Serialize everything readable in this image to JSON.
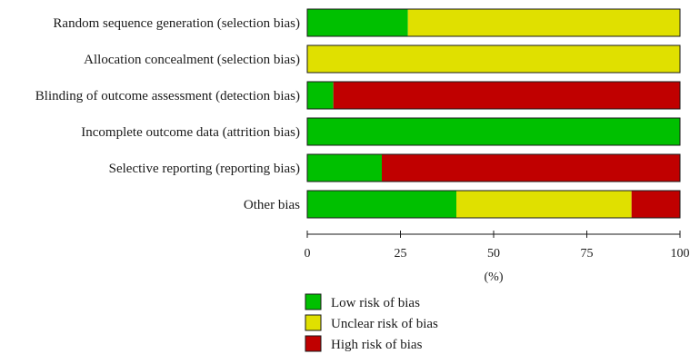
{
  "chart_data": {
    "type": "bar",
    "orientation": "horizontal",
    "stacked": true,
    "categories": [
      "Random sequence generation (selection bias)",
      "Allocation concealment (selection bias)",
      "Blinding of outcome assessment (detection bias)",
      "Incomplete outcome data (attrition bias)",
      "Selective reporting (reporting bias)",
      "Other bias"
    ],
    "series": [
      {
        "name": "Low risk of bias",
        "color": "#00c000",
        "values": [
          27,
          0,
          7,
          100,
          20,
          40
        ]
      },
      {
        "name": "Unclear risk of bias",
        "color": "#e0e000",
        "values": [
          73,
          100,
          0,
          0,
          0,
          47
        ]
      },
      {
        "name": "High risk of bias",
        "color": "#c00000",
        "values": [
          0,
          0,
          93,
          0,
          80,
          13
        ]
      }
    ],
    "xlim": [
      0,
      100
    ],
    "xticks": [
      "0",
      "25",
      "50",
      "75",
      "100"
    ],
    "xlabel": "(%)",
    "legend": "bottom",
    "grid": false
  }
}
